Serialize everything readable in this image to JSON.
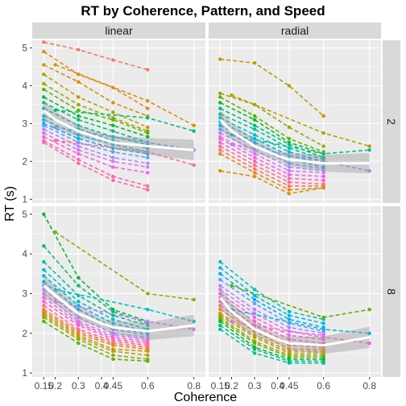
{
  "chart_data": {
    "type": "line",
    "title": "RT by Coherence, Pattern, and Speed",
    "xlabel": "Coherence",
    "ylabel": "RT (s)",
    "x_ticks": [
      "0.15",
      "0.2",
      "0.3",
      "0.4",
      "0.45",
      "0.6",
      "0.8"
    ],
    "y_ticks": [
      1,
      2,
      3,
      4,
      5
    ],
    "xlim": [
      0.1,
      0.85
    ],
    "ylim": [
      0.9,
      5.2
    ],
    "col_facets": [
      "linear",
      "radial"
    ],
    "row_facets": [
      "2",
      "8"
    ],
    "x_levels": [
      0.15,
      0.3,
      0.45,
      0.6
    ],
    "x_levels_alt": [
      0.2,
      0.6,
      0.8
    ],
    "smooth_x": [
      0.15,
      0.2,
      0.3,
      0.4,
      0.45,
      0.6,
      0.8
    ],
    "colors": [
      "#F8766D",
      "#E7861B",
      "#D39200",
      "#B79F00",
      "#93AA00",
      "#5EB300",
      "#00BA38",
      "#00BF74",
      "#00C19F",
      "#00BFC4",
      "#00B9E3",
      "#00ADFA",
      "#619CFF",
      "#AE87FF",
      "#DB72FB",
      "#F564E3",
      "#FF61C3",
      "#FF6C91"
    ],
    "panels": [
      {
        "col": "linear",
        "row": "2",
        "smooth": [
          3.35,
          3.1,
          2.8,
          2.6,
          2.5,
          2.4,
          2.3
        ],
        "subjects": [
          [
            5.15,
            4.95,
            4.68,
            4.42
          ],
          [
            4.9,
            4.3,
            3.95,
            3.4
          ],
          [
            4.55,
            4.1,
            3.55,
            3.2
          ],
          [
            4.3,
            3.7,
            3.3,
            2.9
          ],
          [
            4.05,
            3.5,
            3.15,
            2.8
          ],
          [
            3.9,
            3.35,
            3.1,
            2.75
          ],
          [
            3.7,
            3.2,
            2.95,
            2.65
          ],
          [
            3.55,
            3.1,
            2.8,
            2.5
          ],
          [
            3.4,
            2.95,
            2.65,
            2.45
          ],
          [
            3.2,
            2.85,
            2.55,
            2.35
          ],
          [
            3.1,
            2.7,
            2.45,
            2.25
          ],
          [
            3.0,
            2.6,
            2.35,
            2.2
          ],
          [
            2.95,
            2.5,
            2.25,
            2.1
          ],
          [
            2.85,
            2.4,
            2.1,
            1.95
          ],
          [
            2.75,
            2.3,
            2.0,
            1.85
          ],
          [
            2.65,
            2.2,
            1.85,
            1.7
          ],
          [
            2.55,
            2.05,
            1.6,
            1.35
          ],
          [
            2.5,
            1.95,
            1.5,
            1.25
          ]
        ],
        "subjects_alt": [
          [
            4.55,
            3.6,
            2.95
          ],
          [
            3.35,
            3.15,
            2.8
          ],
          [
            2.9,
            2.5,
            2.3
          ],
          [
            2.55,
            2.25,
            1.9
          ]
        ]
      },
      {
        "col": "radial",
        "row": "2",
        "smooth": [
          3.1,
          2.8,
          2.4,
          2.15,
          2.05,
          1.95,
          1.95
        ],
        "subjects": [
          [
            4.7,
            4.6,
            4.0,
            3.2
          ],
          [
            3.8,
            3.5,
            2.9,
            2.4
          ],
          [
            3.7,
            3.2,
            2.6,
            2.25
          ],
          [
            3.55,
            3.1,
            2.5,
            2.2
          ],
          [
            3.4,
            2.95,
            2.45,
            2.1
          ],
          [
            3.25,
            2.85,
            2.35,
            2.05
          ],
          [
            3.15,
            2.7,
            2.25,
            2.0
          ],
          [
            3.05,
            2.6,
            2.15,
            1.95
          ],
          [
            2.95,
            2.5,
            2.05,
            1.85
          ],
          [
            2.85,
            2.4,
            1.95,
            1.8
          ],
          [
            2.75,
            2.3,
            1.85,
            1.75
          ],
          [
            2.65,
            2.2,
            1.75,
            1.7
          ],
          [
            2.6,
            2.1,
            1.65,
            1.6
          ],
          [
            2.5,
            2.0,
            1.55,
            1.5
          ],
          [
            2.4,
            1.9,
            1.45,
            1.4
          ],
          [
            2.3,
            1.8,
            1.35,
            1.35
          ],
          [
            2.2,
            1.7,
            1.25,
            1.3
          ],
          [
            1.75,
            1.6,
            1.15,
            1.3
          ]
        ],
        "subjects_alt": [
          [
            3.75,
            2.75,
            2.4
          ],
          [
            2.7,
            2.2,
            2.3
          ],
          [
            2.45,
            2.0,
            1.75
          ]
        ]
      },
      {
        "col": "linear",
        "row": "8",
        "smooth": [
          3.2,
          2.95,
          2.5,
          2.25,
          2.15,
          2.05,
          2.2
        ],
        "subjects": [
          [
            5.0,
            3.4,
            2.6,
            2.3
          ],
          [
            4.2,
            3.2,
            2.55,
            2.25
          ],
          [
            3.8,
            2.95,
            2.45,
            2.2
          ],
          [
            3.6,
            2.8,
            2.35,
            2.1
          ],
          [
            3.45,
            2.7,
            2.25,
            2.05
          ],
          [
            3.3,
            2.6,
            2.15,
            2.0
          ],
          [
            3.2,
            2.5,
            2.1,
            1.95
          ],
          [
            3.1,
            2.4,
            2.0,
            1.9
          ],
          [
            3.0,
            2.3,
            1.95,
            1.85
          ],
          [
            2.9,
            2.25,
            1.9,
            1.8
          ],
          [
            2.8,
            2.2,
            1.85,
            1.75
          ],
          [
            2.7,
            2.1,
            1.8,
            1.7
          ],
          [
            2.6,
            2.05,
            1.75,
            1.65
          ],
          [
            2.55,
            2.0,
            1.7,
            1.6
          ],
          [
            2.5,
            1.95,
            1.6,
            1.55
          ],
          [
            2.45,
            1.9,
            1.55,
            1.45
          ],
          [
            2.4,
            1.85,
            1.45,
            1.35
          ],
          [
            2.3,
            1.75,
            1.35,
            1.3
          ]
        ],
        "subjects_alt": [
          [
            4.55,
            3.0,
            2.85
          ],
          [
            3.1,
            2.6,
            2.3
          ],
          [
            2.8,
            2.3,
            2.1
          ]
        ]
      },
      {
        "col": "radial",
        "row": "8",
        "smooth": [
          2.9,
          2.55,
          2.1,
          1.85,
          1.75,
          1.7,
          1.9
        ],
        "subjects": [
          [
            3.8,
            3.1,
            2.55,
            2.35
          ],
          [
            3.65,
            2.95,
            2.45,
            2.25
          ],
          [
            3.5,
            2.85,
            2.35,
            2.15
          ],
          [
            3.35,
            2.75,
            2.25,
            2.05
          ],
          [
            3.2,
            2.6,
            2.15,
            2.0
          ],
          [
            3.1,
            2.5,
            2.05,
            1.95
          ],
          [
            3.0,
            2.4,
            1.95,
            1.85
          ],
          [
            2.9,
            2.3,
            1.85,
            1.75
          ],
          [
            2.8,
            2.2,
            1.75,
            1.7
          ],
          [
            2.7,
            2.1,
            1.7,
            1.65
          ],
          [
            2.6,
            2.05,
            1.6,
            1.6
          ],
          [
            2.5,
            1.95,
            1.55,
            1.55
          ],
          [
            2.45,
            1.9,
            1.5,
            1.5
          ],
          [
            2.4,
            1.8,
            1.45,
            1.45
          ],
          [
            2.35,
            1.75,
            1.4,
            1.4
          ],
          [
            2.3,
            1.65,
            1.35,
            1.35
          ],
          [
            2.2,
            1.6,
            1.3,
            1.3
          ],
          [
            2.1,
            1.5,
            1.25,
            1.25
          ]
        ],
        "subjects_alt": [
          [
            3.2,
            2.4,
            2.6
          ],
          [
            2.6,
            2.1,
            2.0
          ],
          [
            2.3,
            1.9,
            1.75
          ]
        ]
      }
    ]
  }
}
